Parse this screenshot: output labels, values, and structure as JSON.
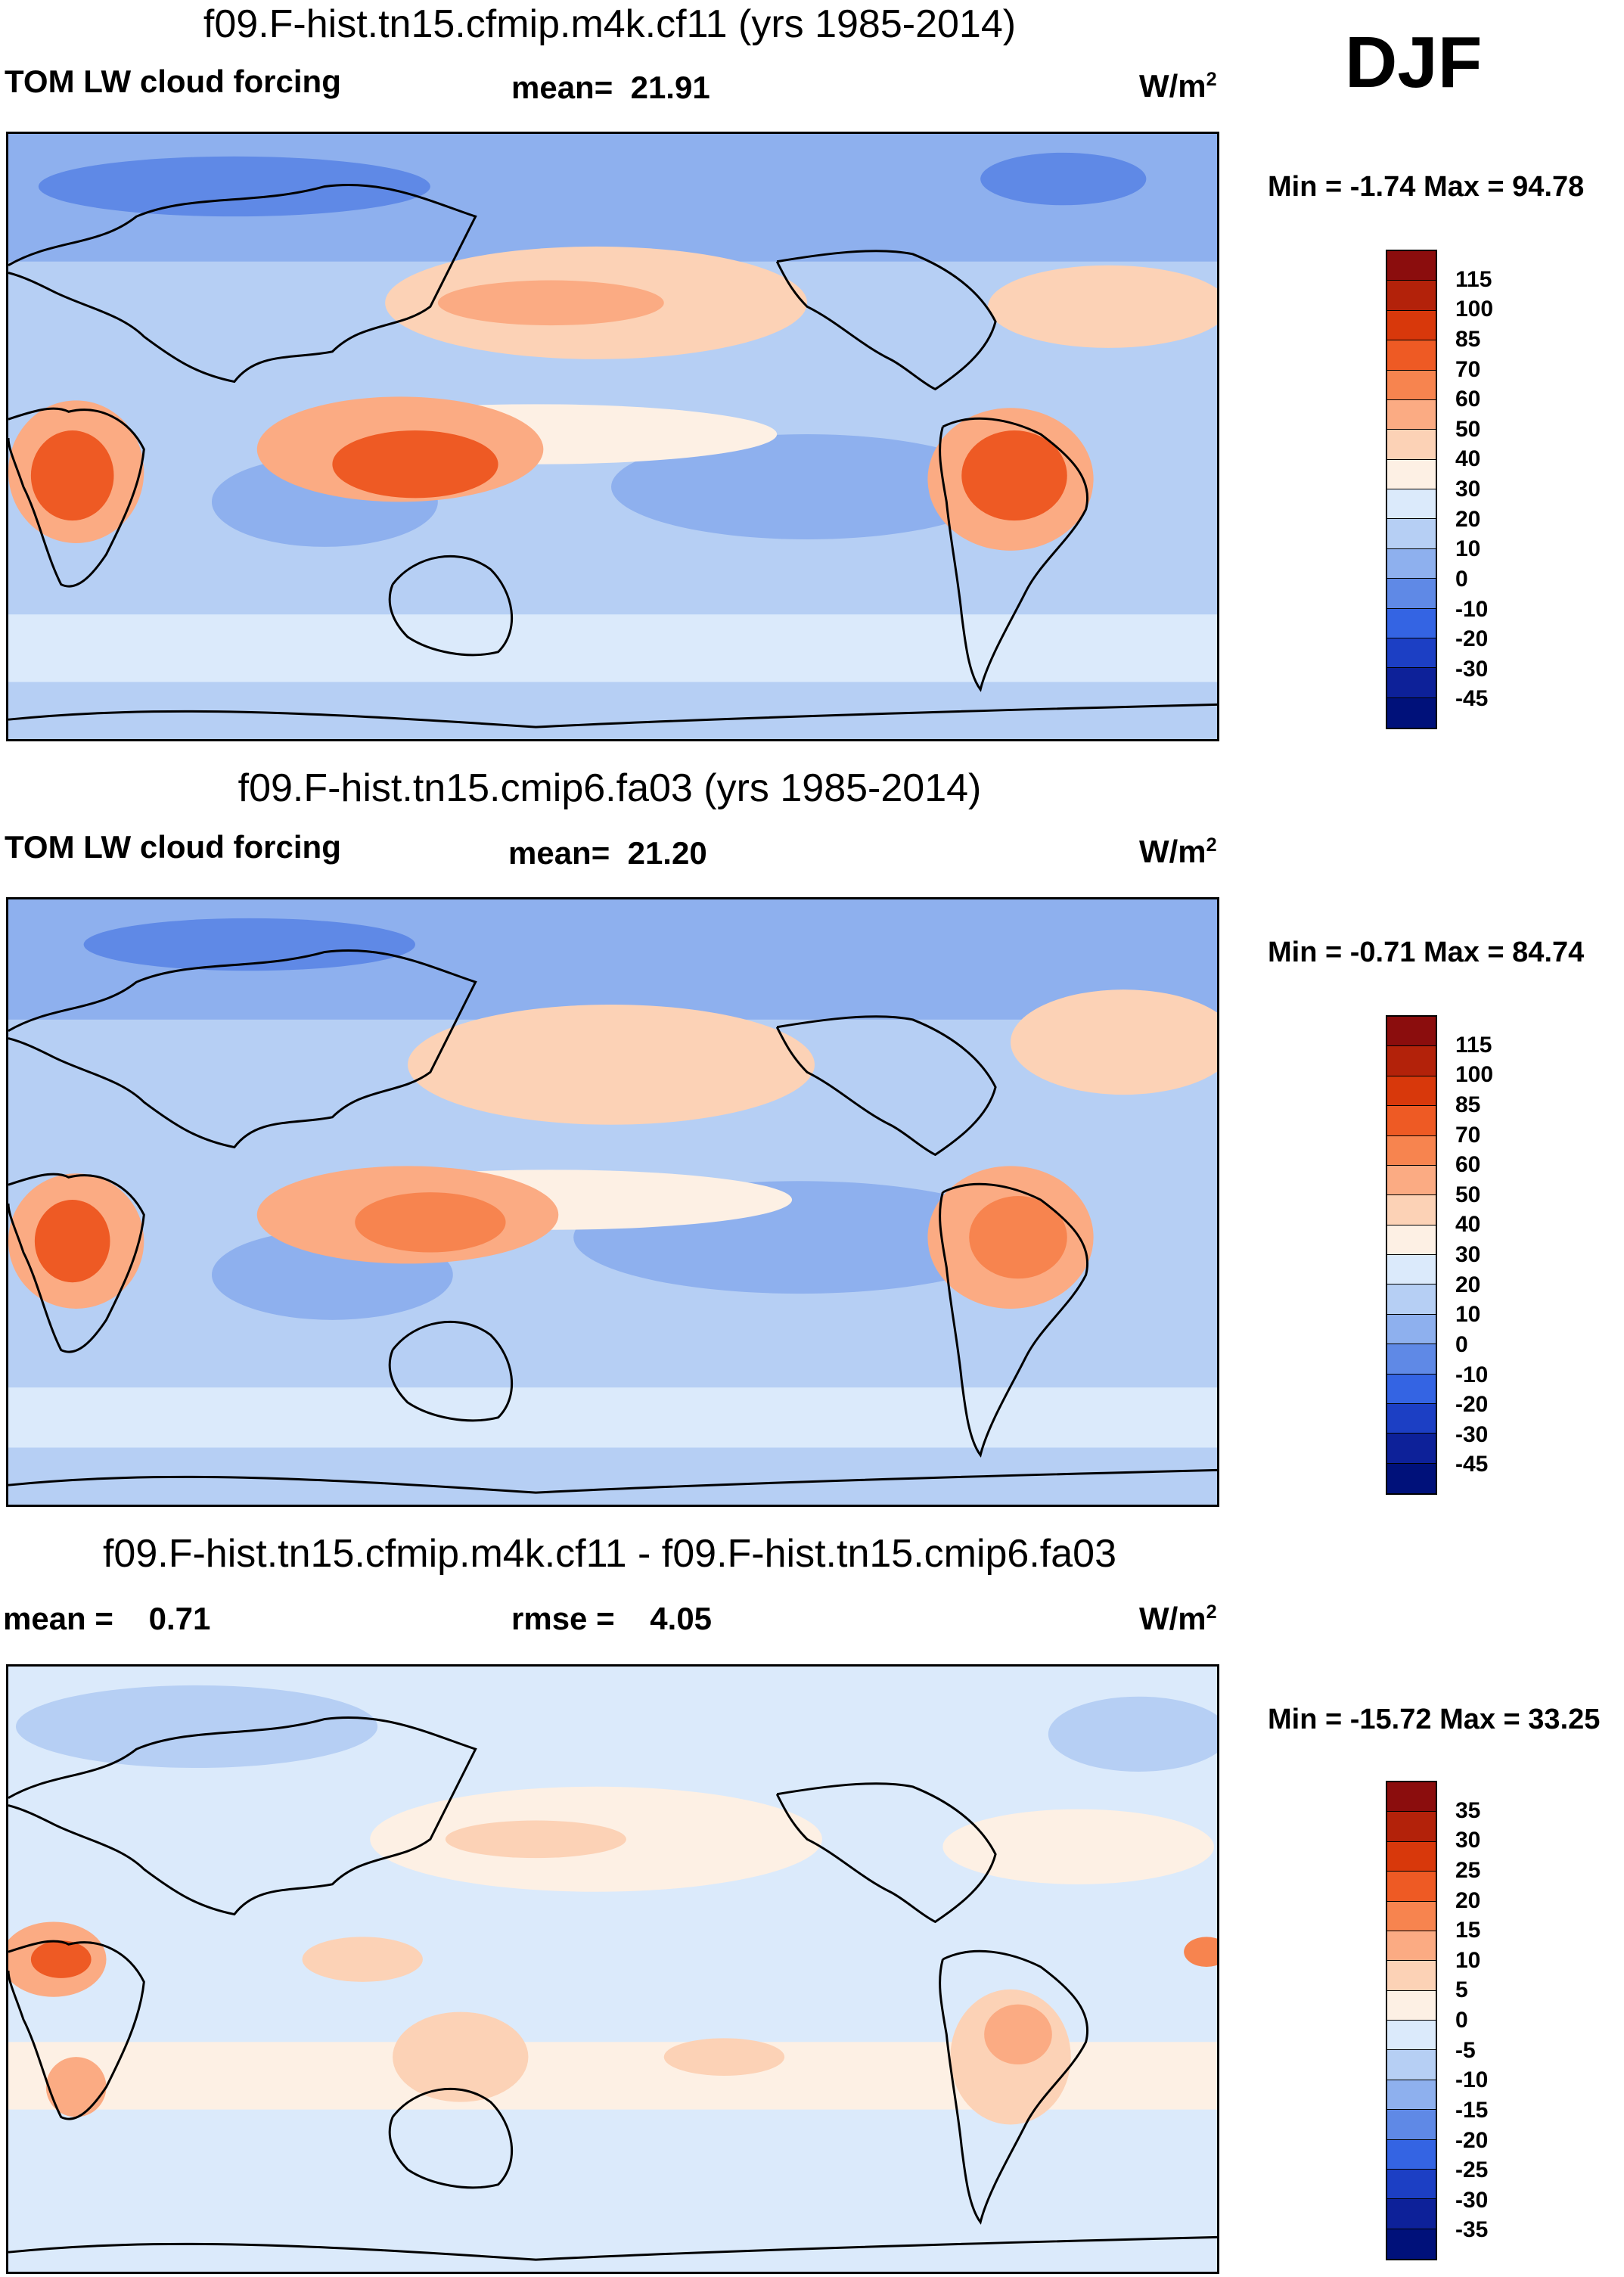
{
  "season": "DJF",
  "chart_data": [
    {
      "type": "heatmap",
      "title": "f09.F-hist.tn15.cfmip.m4k.cf11 (yrs 1985-2014)",
      "variable": "TOM LW cloud forcing",
      "mean_label": "mean=",
      "mean": "21.91",
      "units": "W/m",
      "units_sup": "2",
      "min_label": "Min =",
      "min": "-1.74",
      "max_label": "Max =",
      "max": "94.78",
      "levels": [
        "115",
        "100",
        "85",
        "70",
        "60",
        "50",
        "40",
        "30",
        "20",
        "10",
        "0",
        "-10",
        "-20",
        "-30",
        "-45"
      ],
      "colors": [
        "#8b0d0d",
        "#b3220a",
        "#d8380b",
        "#ee5a24",
        "#f7844f",
        "#fbab83",
        "#fcd2b6",
        "#fdf0e4",
        "#dbeafb",
        "#b6cff4",
        "#8eb0ee",
        "#5f89e6",
        "#3464e3",
        "#1c3fc4",
        "#0d2199",
        "#00117a"
      ]
    },
    {
      "type": "heatmap",
      "title": "f09.F-hist.tn15.cmip6.fa03 (yrs 1985-2014)",
      "variable": "TOM LW cloud forcing",
      "mean_label": "mean=",
      "mean": "21.20",
      "units": "W/m",
      "units_sup": "2",
      "min_label": "Min =",
      "min": "-0.71",
      "max_label": "Max =",
      "max": "84.74",
      "levels": [
        "115",
        "100",
        "85",
        "70",
        "60",
        "50",
        "40",
        "30",
        "20",
        "10",
        "0",
        "-10",
        "-20",
        "-30",
        "-45"
      ],
      "colors": [
        "#8b0d0d",
        "#b3220a",
        "#d8380b",
        "#ee5a24",
        "#f7844f",
        "#fbab83",
        "#fcd2b6",
        "#fdf0e4",
        "#dbeafb",
        "#b6cff4",
        "#8eb0ee",
        "#5f89e6",
        "#3464e3",
        "#1c3fc4",
        "#0d2199",
        "#00117a"
      ]
    },
    {
      "type": "heatmap",
      "title": "f09.F-hist.tn15.cfmip.m4k.cf11 - f09.F-hist.tn15.cmip6.fa03",
      "mean_label": "mean =",
      "mean": "0.71",
      "rmse_label": "rmse =",
      "rmse": "4.05",
      "units": "W/m",
      "units_sup": "2",
      "min_label": "Min =",
      "min": "-15.72",
      "max_label": "Max =",
      "max": "33.25",
      "levels": [
        "35",
        "30",
        "25",
        "20",
        "15",
        "10",
        "5",
        "0",
        "-5",
        "-10",
        "-15",
        "-20",
        "-25",
        "-30",
        "-35"
      ],
      "colors": [
        "#8b0d0d",
        "#b3220a",
        "#d8380b",
        "#ee5a24",
        "#f7844f",
        "#fbab83",
        "#fcd2b6",
        "#fdf0e4",
        "#dbeafb",
        "#b6cff4",
        "#8eb0ee",
        "#5f89e6",
        "#3464e3",
        "#1c3fc4",
        "#0d2199",
        "#00117a"
      ]
    }
  ]
}
